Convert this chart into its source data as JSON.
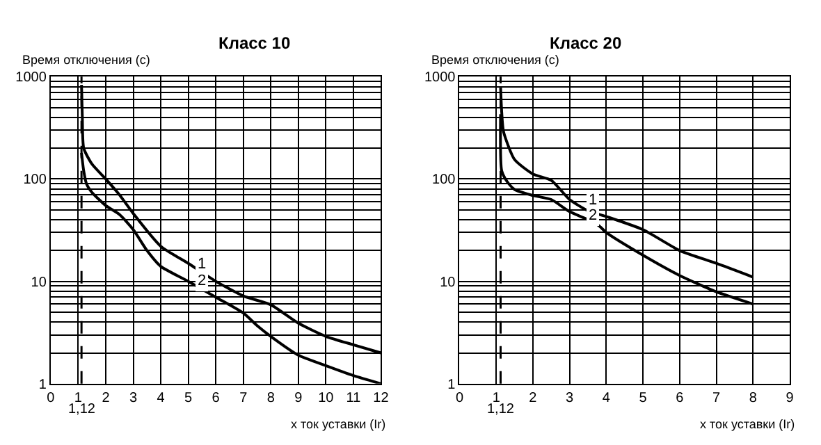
{
  "chart_data": [
    {
      "type": "line",
      "title": "Класс 10",
      "ylabel": "Время отключения (с)",
      "xlabel": "x ток уставки (Ir)",
      "log": "y",
      "grid": true,
      "legend": false,
      "marker": "none",
      "line_style": "solid",
      "xlim": [
        0,
        12
      ],
      "xticks": [
        0,
        1,
        2,
        3,
        4,
        5,
        6,
        7,
        8,
        9,
        10,
        11,
        12
      ],
      "ylim": [
        1,
        1000
      ],
      "yticks": [
        1,
        10,
        100,
        1000
      ],
      "ref_lines": [
        {
          "axis": "x",
          "value": 1.12,
          "label": "1,12",
          "line_style": "dashed",
          "color": "#000000"
        }
      ],
      "series": [
        {
          "name": "1",
          "color": "#000000",
          "x": [
            1.12,
            1.15,
            1.2,
            1.5,
            2,
            2.5,
            3,
            4,
            5,
            6,
            7,
            8,
            9,
            10,
            11,
            12
          ],
          "values": [
            830,
            400,
            200,
            140,
            100,
            70,
            46,
            22,
            15,
            10,
            7.2,
            5.9,
            3.9,
            2.9,
            2.4,
            2.0
          ]
        },
        {
          "name": "2",
          "color": "#000000",
          "x": [
            1.12,
            1.2,
            1.3,
            1.5,
            2,
            2.5,
            3,
            3.5,
            4,
            5,
            6,
            7,
            7.5,
            8,
            9,
            10,
            11,
            12
          ],
          "values": [
            180,
            120,
            90,
            74,
            55,
            45,
            32,
            20,
            14,
            10,
            7,
            4.9,
            3.7,
            2.9,
            1.9,
            1.5,
            1.2,
            1.0
          ]
        }
      ]
    },
    {
      "type": "line",
      "title": "Класс 20",
      "ylabel": "Время отключения (с)",
      "xlabel": "x ток уставки (Ir)",
      "log": "y",
      "grid": true,
      "legend": false,
      "marker": "none",
      "line_style": "solid",
      "xlim": [
        0,
        9
      ],
      "xticks": [
        0,
        1,
        2,
        3,
        4,
        5,
        6,
        7,
        8,
        9
      ],
      "ylim": [
        1,
        1000
      ],
      "yticks": [
        1,
        10,
        100,
        1000
      ],
      "ref_lines": [
        {
          "axis": "x",
          "value": 1.12,
          "label": "1,12",
          "line_style": "dashed",
          "color": "#000000"
        }
      ],
      "series": [
        {
          "name": "1",
          "color": "#000000",
          "x": [
            1.12,
            1.15,
            1.2,
            1.5,
            2,
            2.5,
            3,
            3.5,
            4,
            5,
            6,
            7,
            8
          ],
          "values": [
            780,
            450,
            290,
            155,
            112,
            97,
            63,
            49,
            43,
            32,
            20,
            15,
            11
          ]
        },
        {
          "name": "2",
          "color": "#000000",
          "x": [
            1.12,
            1.15,
            1.3,
            1.5,
            2,
            2.5,
            3,
            3.5,
            3.8,
            4,
            5,
            6,
            7,
            8
          ],
          "values": [
            430,
            120,
            94,
            79,
            69,
            63,
            48,
            40,
            35,
            30,
            18,
            11.4,
            7.9,
            6
          ]
        }
      ]
    }
  ]
}
